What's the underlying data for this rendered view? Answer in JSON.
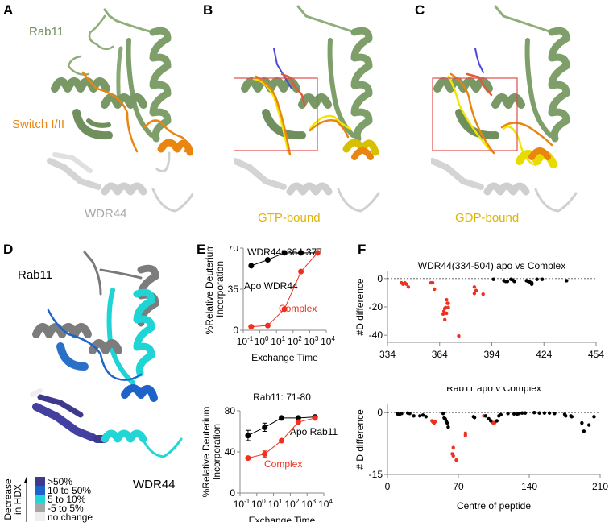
{
  "panels": {
    "A": {
      "letter": "A",
      "labels": {
        "rab11": "Rab11",
        "switch": "Switch I/II",
        "wdr44": "WDR44"
      },
      "colors": {
        "rab11": "#7f9f6a",
        "switch": "#e8860f",
        "wdr44": "#cfcfcf"
      }
    },
    "B": {
      "letter": "B",
      "labels": {
        "state": "GTP-bound"
      },
      "colors": {
        "state_label": "#e0b400",
        "highlight": "#f2e600",
        "box": "#e24a4a"
      }
    },
    "C": {
      "letter": "C",
      "labels": {
        "state": "GDP-bound"
      },
      "colors": {
        "state_label": "#e0b400",
        "highlight": "#f2e600",
        "box": "#e24a4a"
      }
    },
    "D": {
      "letter": "D",
      "labels": {
        "rab11": "Rab11",
        "wdr44": "WDR44"
      },
      "legend": {
        "title_line1": "Decrease",
        "title_line2": "in HDX",
        "items": [
          {
            "label": ">50%",
            "color": "#3d3a8e"
          },
          {
            "label": "10 to 50%",
            "color": "#1e64c8"
          },
          {
            "label": "5 to 10%",
            "color": "#22d6d6"
          },
          {
            "label": "-5 to 5%",
            "color": "#a6a6a6"
          },
          {
            "label": "no change",
            "color": "#eeeeee"
          }
        ]
      }
    },
    "E": {
      "letter": "E"
    },
    "F": {
      "letter": "F"
    }
  },
  "chart_data": [
    {
      "id": "E-top",
      "type": "line",
      "title": "WDR44: 364-377",
      "xlabel": "Exchange Time",
      "ylabel": "%Relative Deuterium Incorporation",
      "xscale": "log",
      "xticks": [
        "10-1",
        "100",
        "101",
        "102",
        "103",
        "104"
      ],
      "xlim": [
        0.1,
        10000
      ],
      "ylim": [
        0,
        70
      ],
      "yticks": [
        0,
        35,
        70
      ],
      "x": [
        0.3,
        3,
        30,
        300,
        3000
      ],
      "series": [
        {
          "name": "Apo WDR44",
          "color": "#000000",
          "values": [
            55,
            60,
            66,
            66,
            66
          ]
        },
        {
          "name": "Complex",
          "color": "#f0301e",
          "values": [
            3,
            4,
            18,
            50,
            66
          ]
        }
      ],
      "legend": "inline annotations"
    },
    {
      "id": "E-bottom",
      "type": "line",
      "title": "Rab11: 71-80",
      "xlabel": "Exchange Time",
      "ylabel": "%Relative Deuterium Incorporation",
      "xscale": "log",
      "xticks": [
        "10-1",
        "100",
        "101",
        "102",
        "103",
        "104"
      ],
      "xlim": [
        0.1,
        10000
      ],
      "ylim": [
        0,
        80
      ],
      "yticks": [
        0,
        40,
        80
      ],
      "x": [
        0.3,
        3,
        30,
        300,
        3000
      ],
      "series": [
        {
          "name": "Apo Rab11",
          "color": "#000000",
          "values": [
            56,
            64,
            73,
            73,
            74
          ],
          "errors": [
            5,
            4,
            1,
            1,
            1
          ]
        },
        {
          "name": "Complex",
          "color": "#f0301e",
          "values": [
            34,
            38,
            51,
            69,
            73
          ],
          "errors": [
            1,
            3,
            1,
            1,
            1
          ]
        }
      ],
      "legend": "inline annotations"
    },
    {
      "id": "F-top",
      "type": "scatter",
      "title": "WDR44(334-504) apo vs Complex",
      "xlabel": "",
      "ylabel": "#D difference",
      "xlim": [
        334,
        454
      ],
      "xticks": [
        334,
        364,
        394,
        424,
        454
      ],
      "ylim": [
        -45,
        5
      ],
      "yticks": [
        0,
        -20,
        -40
      ],
      "reference_line": 0,
      "series": [
        {
          "name": "significant",
          "color": "#f0301e",
          "points": [
            [
              342,
              -3
            ],
            [
              343,
              -4
            ],
            [
              344,
              -3
            ],
            [
              345,
              -4
            ],
            [
              346,
              -6
            ],
            [
              359,
              -3
            ],
            [
              360,
              -3
            ],
            [
              361,
              -7.5
            ],
            [
              368,
              -15
            ],
            [
              368.5,
              -17.5
            ],
            [
              369,
              -17.5
            ],
            [
              367.5,
              -20.5
            ],
            [
              369,
              -20.5
            ],
            [
              367,
              -21
            ],
            [
              366.5,
              -23
            ],
            [
              366,
              -25
            ],
            [
              368,
              -24.5
            ],
            [
              367,
              -29
            ],
            [
              375,
              -40.5
            ],
            [
              384,
              -6
            ],
            [
              385,
              -8.5
            ],
            [
              384,
              -10.5
            ],
            [
              389,
              -11
            ]
          ]
        },
        {
          "name": "not significant",
          "color": "#000000",
          "points": [
            [
              395,
              -0.5
            ],
            [
              401,
              -1.5
            ],
            [
              402,
              -2
            ],
            [
              403,
              -2
            ],
            [
              405,
              -0.5
            ],
            [
              406,
              -1
            ],
            [
              407,
              -2
            ],
            [
              414,
              -1.5
            ],
            [
              415,
              -2
            ],
            [
              416,
              -2.5
            ],
            [
              417,
              -4
            ],
            [
              417,
              -3
            ],
            [
              420,
              -0.5
            ],
            [
              423,
              -0.5
            ],
            [
              437,
              -1.5
            ]
          ]
        }
      ]
    },
    {
      "id": "F-bottom",
      "type": "scatter",
      "title": "Rab11 apo v Complex",
      "xlabel": "Centre of peptide",
      "ylabel": "# D difference",
      "xlim": [
        0,
        210
      ],
      "xticks": [
        0,
        70,
        140,
        210
      ],
      "ylim": [
        -15,
        2
      ],
      "yticks": [
        0,
        -15
      ],
      "reference_line": 0,
      "series": [
        {
          "name": "significant",
          "color": "#f0301e",
          "points": [
            [
              44,
              -2
            ],
            [
              45,
              -2.3
            ],
            [
              46,
              -2.5
            ],
            [
              47,
              -2.2
            ],
            [
              65,
              -8.5
            ],
            [
              64,
              -10
            ],
            [
              65,
              -10.5
            ],
            [
              68,
              -11.5
            ],
            [
              77,
              -5
            ],
            [
              77,
              -5.5
            ],
            [
              95,
              -0.8
            ],
            [
              104,
              -2.4
            ],
            [
              105,
              -2.6
            ],
            [
              106,
              -2.4
            ]
          ]
        },
        {
          "name": "not significant",
          "color": "#000000",
          "points": [
            [
              10,
              -0.3
            ],
            [
              12,
              -0.4
            ],
            [
              14,
              -0.2
            ],
            [
              20,
              -0.1
            ],
            [
              22,
              -0.2
            ],
            [
              26,
              -0.8
            ],
            [
              32,
              -0.8
            ],
            [
              35,
              -0.6
            ],
            [
              38,
              -1
            ],
            [
              55,
              -0.2
            ],
            [
              56,
              -1.3
            ],
            [
              57,
              -1.5
            ],
            [
              58,
              -2
            ],
            [
              59,
              -2.5
            ],
            [
              60,
              -3.5
            ],
            [
              85,
              -1
            ],
            [
              86,
              -1.2
            ],
            [
              97,
              -0.8
            ],
            [
              100,
              -1.5
            ],
            [
              102,
              -2
            ],
            [
              108,
              -2
            ],
            [
              110,
              -0.8
            ],
            [
              112,
              -0.5
            ],
            [
              119,
              -0.2
            ],
            [
              125,
              -0.3
            ],
            [
              128,
              -0.4
            ],
            [
              130,
              -0.2
            ],
            [
              133,
              -0.1
            ],
            [
              136,
              -0.1
            ],
            [
              145,
              0
            ],
            [
              150,
              -0.1
            ],
            [
              155,
              -0.1
            ],
            [
              160,
              -0.1
            ],
            [
              165,
              -0.2
            ],
            [
              175,
              -0.4
            ],
            [
              176,
              -0.8
            ],
            [
              181,
              -0.8
            ],
            [
              182,
              -1
            ],
            [
              192,
              -2.5
            ],
            [
              194,
              -4.5
            ],
            [
              199,
              -3
            ],
            [
              204,
              -1
            ]
          ]
        }
      ]
    }
  ]
}
